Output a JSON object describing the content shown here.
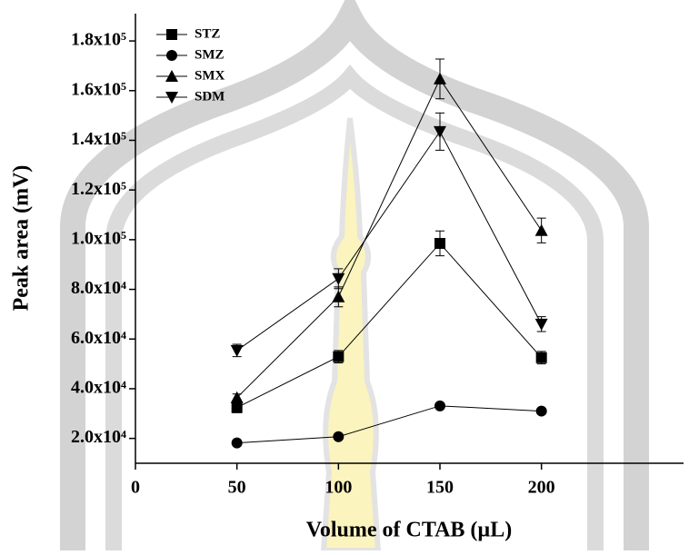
{
  "chart_data": {
    "type": "line",
    "x_label": "Volume of CTAB (µL)",
    "y_label": "Peak area (mV)",
    "xlim": [
      0,
      270
    ],
    "xticks": [
      0,
      50,
      100,
      150,
      200
    ],
    "ylim": [
      10000,
      191000
    ],
    "yticks": [
      {
        "value": 20000,
        "label": "2.0x10⁴"
      },
      {
        "value": 40000,
        "label": "4.0x10⁴"
      },
      {
        "value": 60000,
        "label": "6.0x10⁴"
      },
      {
        "value": 80000,
        "label": "8.0x10⁴"
      },
      {
        "value": 100000,
        "label": "1.0x10⁵"
      },
      {
        "value": 120000,
        "label": "1.2x10⁵"
      },
      {
        "value": 140000,
        "label": "1.4x10⁵"
      },
      {
        "value": 160000,
        "label": "1.6x10⁵"
      },
      {
        "value": 180000,
        "label": "1.8x10⁵"
      }
    ],
    "legend": "upper left",
    "x": [
      50,
      100,
      150,
      200
    ],
    "series": [
      {
        "name": "STZ",
        "color": "#000000",
        "marker": "square",
        "values": [
          32400,
          52900,
          98500,
          52500
        ],
        "errors": [
          2000,
          2500,
          5000,
          2500
        ]
      },
      {
        "name": "SMZ",
        "color": "#000000",
        "marker": "circle",
        "values": [
          18200,
          20700,
          33100,
          31000
        ],
        "errors": [
          500,
          800,
          1000,
          800
        ]
      },
      {
        "name": "SMX",
        "color": "#000000",
        "marker": "triangle-up",
        "values": [
          36400,
          77000,
          164700,
          103700
        ],
        "errors": [
          1500,
          4000,
          8000,
          5000
        ]
      },
      {
        "name": "SDM",
        "color": "#000000",
        "marker": "triangle-down",
        "values": [
          55400,
          84300,
          143500,
          66000
        ],
        "errors": [
          2500,
          4000,
          7500,
          3000
        ]
      }
    ]
  }
}
